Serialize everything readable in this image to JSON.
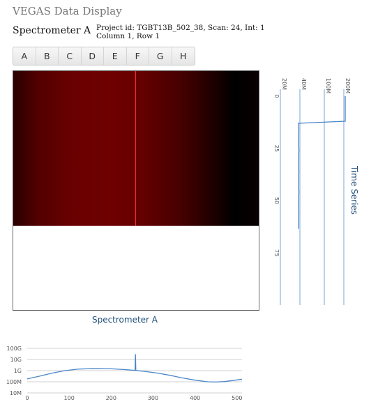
{
  "app": {
    "title": "VEGAS Data Display"
  },
  "spectrometer": {
    "name": "Spectrometer A",
    "project_line": "Project id: TGBT13B_502_38, Scan: 24, Int: 1",
    "position_line": "Column 1, Row 1"
  },
  "bank_tabs": [
    "A",
    "B",
    "C",
    "D",
    "E",
    "F",
    "G",
    "H"
  ],
  "waterfall": {
    "colormap": [
      "#2a0000",
      "#6e0000",
      "#000000"
    ],
    "marker_color": "#ff2a2a"
  },
  "colors": {
    "series": "#4a86c8",
    "axis": "#7aa6d6",
    "grid": "#d0d0d0",
    "title": "#1f4e79"
  },
  "chart_data": [
    {
      "type": "line",
      "title": "Time Series",
      "orientation": "vertical",
      "value_axis": {
        "scale": "log",
        "ticks": [
          "20M",
          "40M",
          "100M",
          "200M"
        ],
        "tick_values": [
          20000000,
          40000000,
          100000000,
          200000000
        ]
      },
      "time_axis": {
        "ticks": [
          "0",
          "25",
          "50",
          "75"
        ],
        "range": [
          0,
          100
        ]
      },
      "series": [
        {
          "t": [
            0,
            2,
            4,
            6,
            8,
            10,
            12,
            13,
            14,
            16,
            18,
            20,
            22,
            24,
            26,
            28,
            30,
            32,
            34,
            36,
            38,
            40,
            42,
            44,
            46,
            48,
            50,
            52,
            54,
            56,
            58,
            60,
            62,
            63.5
          ],
          "values": [
            210000000,
            210000000,
            210000000,
            210000000,
            210000000,
            210000000,
            210000000,
            38000000,
            38000000,
            38500000,
            38200000,
            38400000,
            38100000,
            38300000,
            38600000,
            38200000,
            38400000,
            38100000,
            38300000,
            38500000,
            38200000,
            38400000,
            38100000,
            38300000,
            38600000,
            38200000,
            38400000,
            38100000,
            38300000,
            38500000,
            38200000,
            38400000,
            38100000,
            38300000
          ]
        }
      ]
    },
    {
      "type": "line",
      "title": "Spectrometer A",
      "xlim": [
        0,
        512
      ],
      "x_ticks": [
        "0",
        "100",
        "200",
        "300",
        "400",
        "500"
      ],
      "y_scale": "log",
      "y_ticks": [
        "10M",
        "100M",
        "1G",
        "10G",
        "100G"
      ],
      "y_tick_values": [
        10000000,
        100000000,
        1000000000,
        10000000000,
        100000000000
      ],
      "series": [
        {
          "x": [
            0,
            30,
            60,
            90,
            120,
            150,
            170,
            200,
            230,
            257,
            258,
            259,
            260,
            280,
            310,
            340,
            370,
            400,
            430,
            450,
            470,
            490,
            512
          ],
          "values": [
            180000000,
            320000000,
            600000000,
            1000000000,
            1350000000,
            1500000000,
            1520000000,
            1450000000,
            1250000000,
            1050000000,
            30000000000,
            1050000000,
            1030000000,
            850000000,
            600000000,
            380000000,
            220000000,
            140000000,
            100000000,
            95000000,
            105000000,
            130000000,
            170000000
          ]
        }
      ]
    }
  ]
}
